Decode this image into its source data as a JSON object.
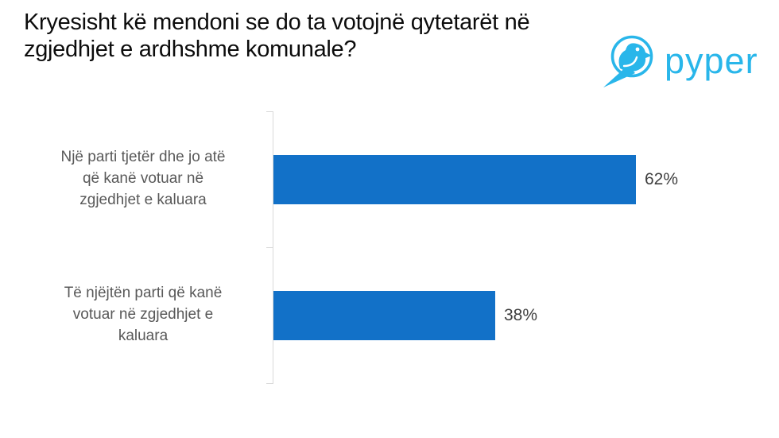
{
  "page": {
    "background": "#ffffff"
  },
  "header": {
    "title_lines": [
      "Kryesisht kë mendoni se do ta votojnë qytetarët në",
      "zgjedhjet e ardhshme komunale?"
    ],
    "logo": {
      "brand": "pyper",
      "icon": "pyper-bird-in-circle",
      "color": "#29b6ea"
    }
  },
  "chart_data": {
    "type": "bar",
    "orientation": "horizontal",
    "title": "Kryesisht kë mendoni se do ta votojnë qytetarët në zgjedhjet e ardhshme komunale?",
    "categories": [
      "Një parti tjetër dhe jo atë që kanë votuar në zgjedhjet e kaluara",
      "Të njëjtën parti që kanë votuar në zgjedhjet e kaluara"
    ],
    "category_lines": [
      [
        "Një parti tjetër dhe jo atë",
        "që kanë votuar në",
        "zgjedhjet e kaluara"
      ],
      [
        "Të njëjtën parti që kanë",
        "votuar në zgjedhjet e",
        "kaluara"
      ]
    ],
    "values": [
      62,
      38
    ],
    "value_labels": [
      "62%",
      "38%"
    ],
    "unit": "%",
    "bar_color": "#1271c8",
    "axis_color": "#d9d9d9",
    "label_color": "#595959",
    "value_label_color": "#3f3f3f",
    "legend": "none",
    "gridlines": "off",
    "xlabel": "",
    "ylabel": ""
  }
}
